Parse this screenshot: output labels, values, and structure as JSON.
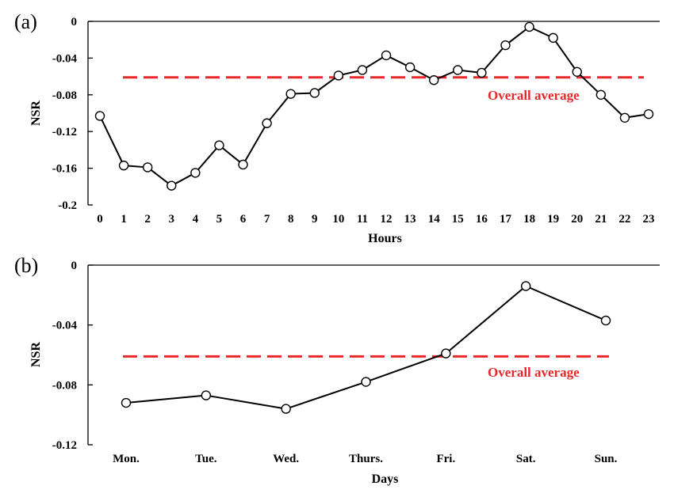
{
  "colors": {
    "average_line": "#e8282b",
    "series": "#000000",
    "marker_fill": "#ffffff"
  },
  "chart_data": [
    {
      "type": "line",
      "panel_label": "(a)",
      "xlabel": "Hours",
      "ylabel": "NSR",
      "categories": [
        "0",
        "1",
        "2",
        "3",
        "4",
        "5",
        "6",
        "7",
        "8",
        "9",
        "10",
        "11",
        "12",
        "13",
        "14",
        "15",
        "16",
        "17",
        "18",
        "19",
        "20",
        "21",
        "22",
        "23"
      ],
      "series": [
        {
          "values": [
            -0.103,
            -0.157,
            -0.159,
            -0.179,
            -0.165,
            -0.135,
            -0.156,
            -0.111,
            -0.079,
            -0.078,
            -0.059,
            -0.053,
            -0.037,
            -0.05,
            -0.064,
            -0.053,
            -0.056,
            -0.026,
            -0.006,
            -0.018,
            -0.055,
            -0.08,
            -0.105,
            -0.101
          ]
        }
      ],
      "ylim": [
        -0.2,
        0
      ],
      "yticks": [
        0,
        -0.04,
        -0.08,
        -0.12,
        -0.16,
        -0.2
      ],
      "ytick_labels": [
        "0",
        "-0.04",
        "-0.08",
        "-0.12",
        "-0.16",
        "-0.2"
      ],
      "reference_line": {
        "label": "Overall average",
        "value": -0.061
      },
      "grid": false
    },
    {
      "type": "line",
      "panel_label": "(b)",
      "xlabel": "Days",
      "ylabel": "NSR",
      "categories": [
        "Mon.",
        "Tue.",
        "Wed.",
        "Thurs.",
        "Fri.",
        "Sat.",
        "Sun."
      ],
      "series": [
        {
          "values": [
            -0.092,
            -0.087,
            -0.096,
            -0.078,
            -0.059,
            -0.014,
            -0.037
          ]
        }
      ],
      "ylim": [
        -0.12,
        0
      ],
      "yticks": [
        0,
        -0.04,
        -0.08,
        -0.12
      ],
      "ytick_labels": [
        "0",
        "-0.04",
        "-0.08",
        "-0.12"
      ],
      "reference_line": {
        "label": "Overall average",
        "value": -0.061
      },
      "grid": false
    }
  ]
}
